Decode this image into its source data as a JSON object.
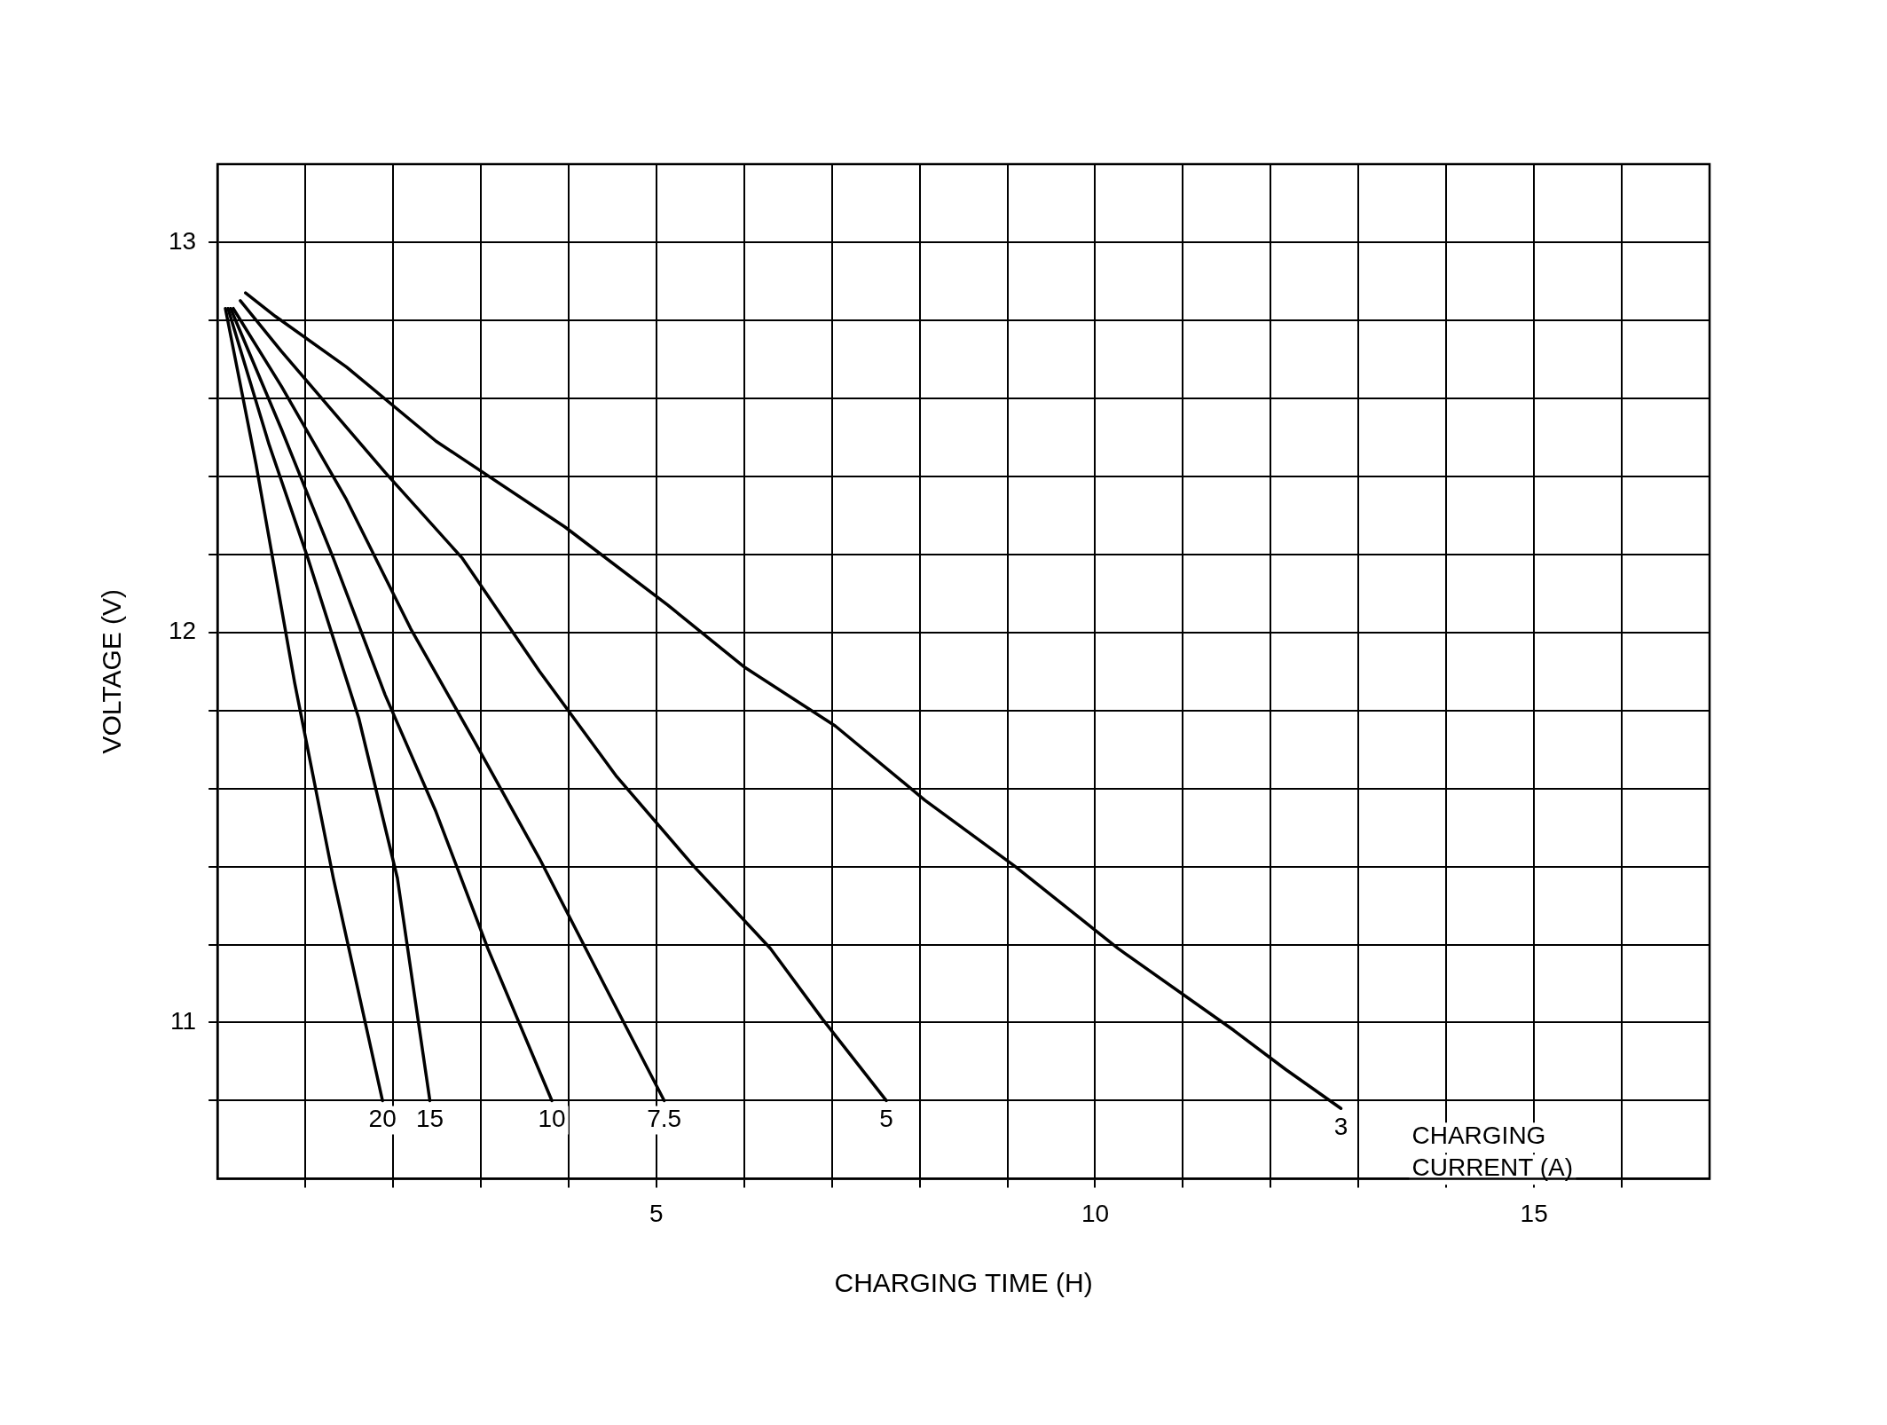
{
  "chart_data": {
    "type": "line",
    "xlabel": "CHARGING TIME (H)",
    "ylabel": "VOLTAGE (V)",
    "xlim": [
      0,
      17
    ],
    "xticks": [
      {
        "value": 1,
        "label": null
      },
      {
        "value": 2,
        "label": null
      },
      {
        "value": 3,
        "label": null
      },
      {
        "value": 4,
        "label": null
      },
      5,
      {
        "value": 6,
        "label": null
      },
      {
        "value": 7,
        "label": null
      },
      {
        "value": 8,
        "label": null
      },
      {
        "value": 9,
        "label": null
      },
      10,
      {
        "value": 11,
        "label": null
      },
      {
        "value": 12,
        "label": null
      },
      {
        "value": 13,
        "label": null
      },
      {
        "value": 14,
        "label": null
      },
      15,
      {
        "value": 16,
        "label": null
      }
    ],
    "ylim": [
      10.6,
      13.2
    ],
    "yticks": [
      {
        "value": 10.8,
        "label": null
      },
      11,
      {
        "value": 11.2,
        "label": null
      },
      {
        "value": 11.4,
        "label": null
      },
      {
        "value": 11.6,
        "label": null
      },
      {
        "value": 11.8,
        "label": null
      },
      12,
      {
        "value": 12.2,
        "label": null
      },
      {
        "value": 12.4,
        "label": null
      },
      {
        "value": 12.6,
        "label": null
      },
      {
        "value": 12.8,
        "label": null
      },
      13
    ],
    "grid": true,
    "legend": false,
    "marker": "none",
    "line_style": "solid",
    "annotations": [
      "CHARGING CURRENT (A)"
    ],
    "series": [
      {
        "name": "20",
        "color": "#000000",
        "x": [
          0.09,
          0.44,
          0.88,
          1.32,
          1.88
        ],
        "values": [
          12.83,
          12.43,
          11.87,
          11.37,
          10.8
        ]
      },
      {
        "name": "15",
        "color": "#000000",
        "x": [
          0.12,
          0.59,
          1.03,
          1.61,
          2.05,
          2.42
        ],
        "values": [
          12.83,
          12.48,
          12.19,
          11.78,
          11.37,
          10.8
        ]
      },
      {
        "name": "10",
        "color": "#000000",
        "x": [
          0.15,
          0.73,
          1.32,
          1.91,
          2.49,
          3.08,
          3.81
        ],
        "values": [
          12.83,
          12.52,
          12.19,
          11.84,
          11.54,
          11.19,
          10.8
        ]
      },
      {
        "name": "7.5",
        "color": "#000000",
        "x": [
          0.18,
          0.73,
          1.47,
          2.2,
          2.93,
          3.67,
          4.4,
          5.09
        ],
        "values": [
          12.83,
          12.63,
          12.34,
          12.01,
          11.72,
          11.42,
          11.1,
          10.8
        ]
      },
      {
        "name": "5",
        "color": "#000000",
        "x": [
          0.26,
          0.73,
          1.91,
          2.79,
          3.67,
          4.55,
          5.43,
          6.3,
          6.89,
          7.62
        ],
        "values": [
          12.85,
          12.72,
          12.41,
          12.19,
          11.9,
          11.63,
          11.4,
          11.19,
          11.01,
          10.8
        ]
      },
      {
        "name": "3",
        "color": "#000000",
        "x": [
          0.32,
          0.66,
          1.47,
          2.49,
          3.96,
          5.13,
          6.01,
          7.04,
          8.06,
          9.09,
          10.26,
          11.58,
          12.17,
          12.8
        ],
        "values": [
          12.87,
          12.81,
          12.68,
          12.49,
          12.27,
          12.07,
          11.91,
          11.76,
          11.57,
          11.4,
          11.19,
          10.98,
          10.88,
          10.78
        ]
      }
    ]
  }
}
